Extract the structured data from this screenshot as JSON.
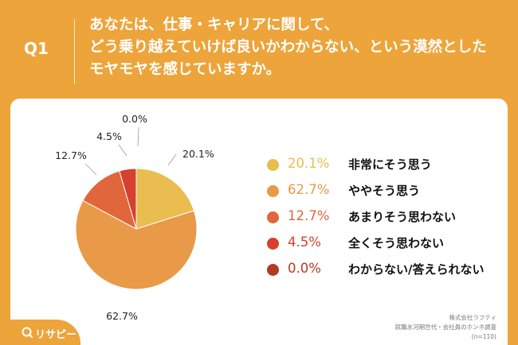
{
  "question": {
    "number": "Q1",
    "lines": [
      "あなたは、仕事・キャリアに関して、",
      "どう乗り越えていけば良いかわからない、という漠然とした",
      "モヤモヤを感じていますか。"
    ]
  },
  "chart_data": {
    "type": "pie",
    "slices": [
      {
        "label": "非常にそう思う",
        "value": 20.1,
        "display": "20.1%",
        "color": "#e9bd4f"
      },
      {
        "label": "ややそう思う",
        "value": 62.7,
        "display": "62.7%",
        "color": "#e89a48"
      },
      {
        "label": "あまりそう思わない",
        "value": 12.7,
        "display": "12.7%",
        "color": "#e1663b"
      },
      {
        "label": "全くそう思わない",
        "value": 4.5,
        "display": "4.5%",
        "color": "#d6402d"
      },
      {
        "label": "わからない/答えられない",
        "value": 0.0,
        "display": "0.0%",
        "color": "#b33a22"
      }
    ],
    "slice_labels": [
      "20.1%",
      "62.7%",
      "12.7%",
      "4.5%",
      "0.0%"
    ],
    "legend_placement": "right"
  },
  "source": {
    "lines": [
      "株式会社ラフティ",
      "就職氷河期世代・会社員のホンネ調査",
      "(n=110)"
    ]
  },
  "logo": {
    "text": "リサピー",
    "color": "#ffffff"
  }
}
